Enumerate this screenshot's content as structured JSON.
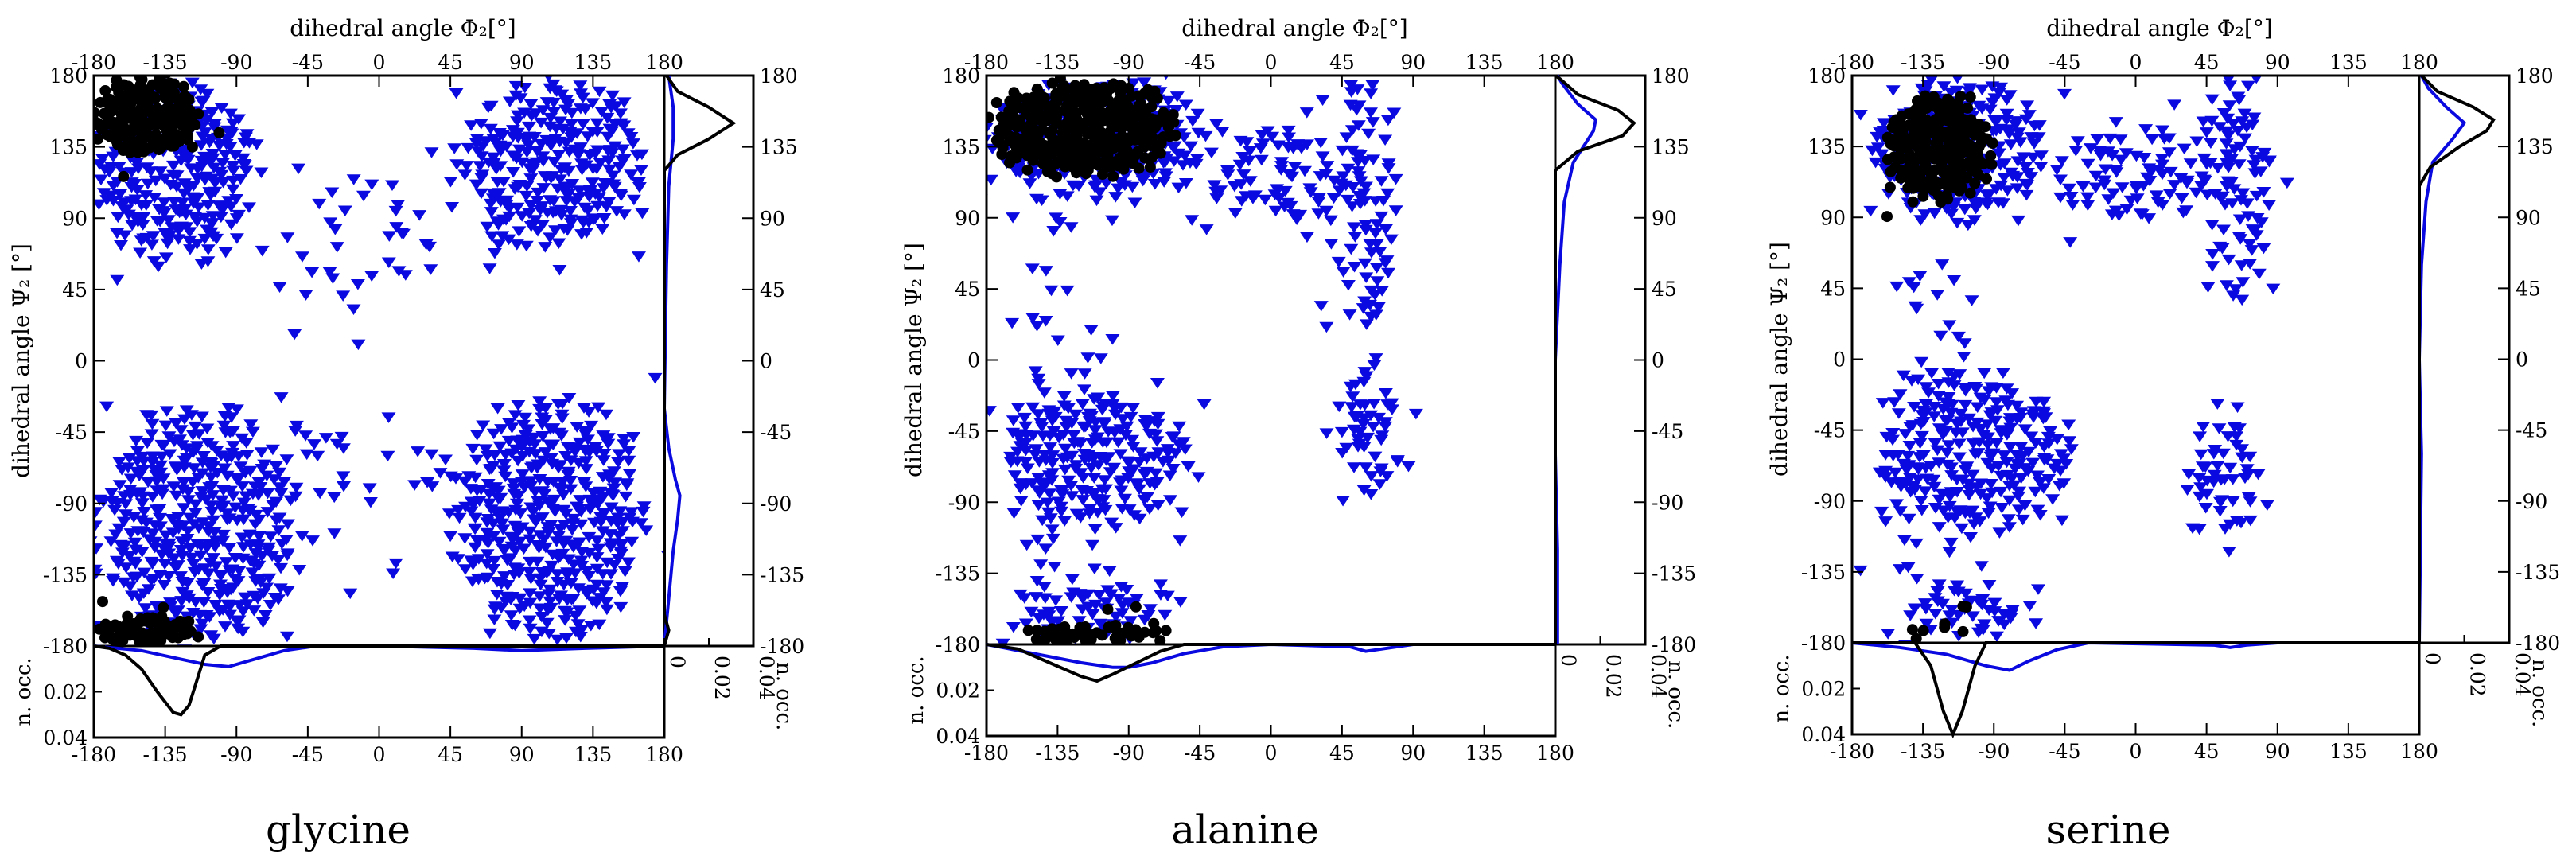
{
  "colors": {
    "black_series": "#000000",
    "blue_series": "#0a0ae0",
    "frame": "#000000"
  },
  "chart_data": [
    {
      "type": "scatter",
      "caption": "glycine",
      "x_axis": {
        "label": "dihedral angle Φ₂[°]",
        "range": [
          -180,
          180
        ],
        "ticks": [
          "-180",
          "-135",
          "-90",
          "-45",
          "0",
          "45",
          "90",
          "135",
          "180"
        ]
      },
      "y_axis": {
        "label": "dihedral angle Ψ₂ [°]",
        "range": [
          -180,
          180
        ],
        "ticks": [
          "180",
          "135",
          "90",
          "45",
          "0",
          "-45",
          "-90",
          "-135",
          "-180"
        ]
      },
      "marginal_axis": {
        "label": "n. occ.",
        "range": [
          0,
          0.04
        ],
        "ticks": [
          "0",
          "0.02",
          "0.04"
        ]
      },
      "clusters": [
        {
          "series": "black",
          "phi": [
            -180,
            -112
          ],
          "psi": [
            128,
            180
          ],
          "density": 1.0
        },
        {
          "series": "black",
          "phi": [
            -180,
            -112
          ],
          "psi": [
            -180,
            -162
          ],
          "density": 1.0
        },
        {
          "series": "blue",
          "phi": [
            -180,
            -75
          ],
          "psi": [
            60,
            180
          ],
          "density": 0.9
        },
        {
          "series": "blue",
          "phi": [
            -180,
            -50
          ],
          "psi": [
            -180,
            -25
          ],
          "density": 0.9
        },
        {
          "series": "blue",
          "phi": [
            50,
            170
          ],
          "psi": [
            70,
            180
          ],
          "density": 0.9
        },
        {
          "series": "blue",
          "phi": [
            45,
            170
          ],
          "psi": [
            -180,
            -20
          ],
          "density": 0.9
        },
        {
          "series": "blue",
          "phi": [
            -60,
            45
          ],
          "psi": [
            20,
            120
          ],
          "density": 0.12
        },
        {
          "series": "blue",
          "phi": [
            -60,
            45
          ],
          "psi": [
            -150,
            -30
          ],
          "density": 0.08
        }
      ],
      "phi_distribution": {
        "black": [
          [
            -180,
            0.0
          ],
          [
            -170,
            0.001
          ],
          [
            -160,
            0.004
          ],
          [
            -150,
            0.01
          ],
          [
            -140,
            0.02
          ],
          [
            -130,
            0.029
          ],
          [
            -125,
            0.03
          ],
          [
            -120,
            0.026
          ],
          [
            -115,
            0.015
          ],
          [
            -110,
            0.004
          ],
          [
            -100,
            0.0
          ],
          [
            180,
            0.0
          ]
        ],
        "blue": [
          [
            -180,
            0.0
          ],
          [
            -150,
            0.002
          ],
          [
            -130,
            0.005
          ],
          [
            -110,
            0.008
          ],
          [
            -95,
            0.009
          ],
          [
            -80,
            0.006
          ],
          [
            -60,
            0.002
          ],
          [
            -40,
            0.0
          ],
          [
            0,
            0.0
          ],
          [
            60,
            0.001
          ],
          [
            90,
            0.002
          ],
          [
            130,
            0.001
          ],
          [
            180,
            0.0
          ]
        ]
      },
      "psi_distribution": {
        "black": [
          [
            -180,
            0.0
          ],
          [
            -170,
            0.002
          ],
          [
            -160,
            0.0
          ],
          [
            120,
            0.0
          ],
          [
            130,
            0.006
          ],
          [
            140,
            0.02
          ],
          [
            150,
            0.031
          ],
          [
            160,
            0.02
          ],
          [
            170,
            0.006
          ],
          [
            180,
            0.001
          ]
        ],
        "blue": [
          [
            -180,
            0.0
          ],
          [
            -150,
            0.002
          ],
          [
            -120,
            0.004
          ],
          [
            -100,
            0.006
          ],
          [
            -85,
            0.007
          ],
          [
            -75,
            0.005
          ],
          [
            -55,
            0.002
          ],
          [
            -30,
            0.0
          ],
          [
            60,
            0.001
          ],
          [
            110,
            0.002
          ],
          [
            140,
            0.004
          ],
          [
            160,
            0.004
          ],
          [
            180,
            0.002
          ]
        ]
      }
    },
    {
      "type": "scatter",
      "caption": "alanine",
      "x_axis": {
        "label": "dihedral angle Φ₂[°]",
        "range": [
          -180,
          180
        ],
        "ticks": [
          "-180",
          "-135",
          "-90",
          "-45",
          "0",
          "45",
          "90",
          "135",
          "180"
        ]
      },
      "y_axis": {
        "label": "dihedral angle Ψ₂ [°]",
        "range": [
          -180,
          180
        ],
        "ticks": [
          "180",
          "135",
          "90",
          "45",
          "0",
          "-45",
          "-90",
          "-135",
          "-180"
        ]
      },
      "marginal_axis": {
        "label": "n. occ.",
        "range": [
          0,
          0.04
        ],
        "ticks": [
          "0",
          "0.02",
          "0.04"
        ]
      },
      "clusters": [
        {
          "series": "black",
          "phi": [
            -178,
            -60
          ],
          "psi": [
            115,
            178
          ],
          "density": 1.0
        },
        {
          "series": "black",
          "phi": [
            -160,
            -60
          ],
          "psi": [
            -178,
            -168
          ],
          "density": 0.7
        },
        {
          "series": "blue",
          "phi": [
            -180,
            -35
          ],
          "psi": [
            100,
            180
          ],
          "density": 0.9
        },
        {
          "series": "blue",
          "phi": [
            -35,
            50
          ],
          "psi": [
            85,
            150
          ],
          "density": 0.5
        },
        {
          "series": "blue",
          "phi": [
            40,
            80
          ],
          "psi": [
            20,
            180
          ],
          "density": 0.5
        },
        {
          "series": "blue",
          "phi": [
            -170,
            -50
          ],
          "psi": [
            -105,
            -20
          ],
          "density": 0.8
        },
        {
          "series": "blue",
          "phi": [
            45,
            80
          ],
          "psi": [
            -85,
            -5
          ],
          "density": 0.6
        },
        {
          "series": "blue",
          "phi": [
            -160,
            -65
          ],
          "psi": [
            -180,
            -140
          ],
          "density": 0.7
        },
        {
          "series": "blue",
          "phi": [
            -170,
            -100
          ],
          "psi": [
            -140,
            90
          ],
          "density": 0.15
        }
      ],
      "phi_distribution": {
        "black": [
          [
            -180,
            0.0
          ],
          [
            -160,
            0.002
          ],
          [
            -140,
            0.008
          ],
          [
            -120,
            0.014
          ],
          [
            -110,
            0.016
          ],
          [
            -100,
            0.013
          ],
          [
            -85,
            0.008
          ],
          [
            -70,
            0.003
          ],
          [
            -55,
            0.0
          ],
          [
            180,
            0.0
          ]
        ],
        "blue": [
          [
            -180,
            0.0
          ],
          [
            -150,
            0.004
          ],
          [
            -120,
            0.008
          ],
          [
            -100,
            0.01
          ],
          [
            -90,
            0.01
          ],
          [
            -75,
            0.008
          ],
          [
            -55,
            0.004
          ],
          [
            -30,
            0.001
          ],
          [
            0,
            0.0
          ],
          [
            50,
            0.001
          ],
          [
            60,
            0.003
          ],
          [
            70,
            0.002
          ],
          [
            90,
            0.0
          ],
          [
            180,
            0.0
          ]
        ]
      },
      "psi_distribution": {
        "black": [
          [
            -180,
            0.0
          ],
          [
            120,
            0.0
          ],
          [
            132,
            0.01
          ],
          [
            142,
            0.03
          ],
          [
            150,
            0.035
          ],
          [
            158,
            0.028
          ],
          [
            168,
            0.01
          ],
          [
            178,
            0.002
          ],
          [
            180,
            0.0
          ]
        ],
        "blue": [
          [
            -180,
            0.001
          ],
          [
            -120,
            0.001
          ],
          [
            -60,
            0.0
          ],
          [
            0,
            0.0
          ],
          [
            60,
            0.002
          ],
          [
            100,
            0.004
          ],
          [
            125,
            0.008
          ],
          [
            145,
            0.017
          ],
          [
            152,
            0.018
          ],
          [
            162,
            0.01
          ],
          [
            175,
            0.003
          ],
          [
            180,
            0.001
          ]
        ]
      }
    },
    {
      "type": "scatter",
      "caption": "serine",
      "x_axis": {
        "label": "dihedral angle Φ₂[°]",
        "range": [
          -180,
          180
        ],
        "ticks": [
          "-180",
          "-135",
          "-90",
          "-45",
          "0",
          "45",
          "90",
          "135",
          "180"
        ]
      },
      "y_axis": {
        "label": "dihedral angle Ψ₂ [°]",
        "range": [
          -180,
          180
        ],
        "ticks": [
          "180",
          "135",
          "90",
          "45",
          "0",
          "-45",
          "-90",
          "-135",
          "-180"
        ]
      },
      "marginal_axis": {
        "label": "n. occ.",
        "range": [
          0,
          0.04
        ],
        "ticks": [
          "0",
          "0.02",
          "0.04"
        ]
      },
      "clusters": [
        {
          "series": "black",
          "phi": [
            -160,
            -90
          ],
          "psi": [
            100,
            170
          ],
          "density": 1.0
        },
        {
          "series": "black",
          "phi": [
            -150,
            -100
          ],
          "psi": [
            -175,
            -168
          ],
          "density": 0.2
        },
        {
          "series": "blue",
          "phi": [
            -170,
            -55
          ],
          "psi": [
            85,
            180
          ],
          "density": 0.85
        },
        {
          "series": "blue",
          "phi": [
            -55,
            50
          ],
          "psi": [
            85,
            150
          ],
          "density": 0.45
        },
        {
          "series": "blue",
          "phi": [
            40,
            85
          ],
          "psi": [
            25,
            180
          ],
          "density": 0.5
        },
        {
          "series": "blue",
          "phi": [
            -160,
            -40
          ],
          "psi": [
            -110,
            -10
          ],
          "density": 0.8
        },
        {
          "series": "blue",
          "phi": [
            40,
            80
          ],
          "psi": [
            -110,
            -40
          ],
          "density": 0.55
        },
        {
          "series": "blue",
          "phi": [
            -150,
            -70
          ],
          "psi": [
            -180,
            -140
          ],
          "density": 0.6
        },
        {
          "series": "blue",
          "phi": [
            -170,
            -100
          ],
          "psi": [
            -140,
            90
          ],
          "density": 0.12
        }
      ],
      "phi_distribution": {
        "black": [
          [
            -180,
            0.0
          ],
          [
            -140,
            0.0
          ],
          [
            -130,
            0.01
          ],
          [
            -122,
            0.03
          ],
          [
            -116,
            0.04
          ],
          [
            -110,
            0.03
          ],
          [
            -102,
            0.01
          ],
          [
            -95,
            0.0
          ],
          [
            180,
            0.0
          ]
        ],
        "blue": [
          [
            -180,
            0.0
          ],
          [
            -150,
            0.002
          ],
          [
            -120,
            0.005
          ],
          [
            -95,
            0.01
          ],
          [
            -80,
            0.012
          ],
          [
            -68,
            0.008
          ],
          [
            -50,
            0.003
          ],
          [
            -30,
            0.0
          ],
          [
            50,
            0.001
          ],
          [
            60,
            0.002
          ],
          [
            70,
            0.001
          ],
          [
            90,
            0.0
          ],
          [
            180,
            0.0
          ]
        ]
      },
      "psi_distribution": {
        "black": [
          [
            -180,
            0.0
          ],
          [
            110,
            0.0
          ],
          [
            122,
            0.005
          ],
          [
            135,
            0.018
          ],
          [
            145,
            0.03
          ],
          [
            152,
            0.033
          ],
          [
            160,
            0.024
          ],
          [
            170,
            0.008
          ],
          [
            180,
            0.001
          ]
        ],
        "blue": [
          [
            -180,
            0.0
          ],
          [
            -60,
            0.001
          ],
          [
            0,
            0.0
          ],
          [
            60,
            0.001
          ],
          [
            100,
            0.003
          ],
          [
            125,
            0.006
          ],
          [
            140,
            0.015
          ],
          [
            150,
            0.02
          ],
          [
            160,
            0.012
          ],
          [
            172,
            0.004
          ],
          [
            180,
            0.001
          ]
        ]
      }
    }
  ]
}
